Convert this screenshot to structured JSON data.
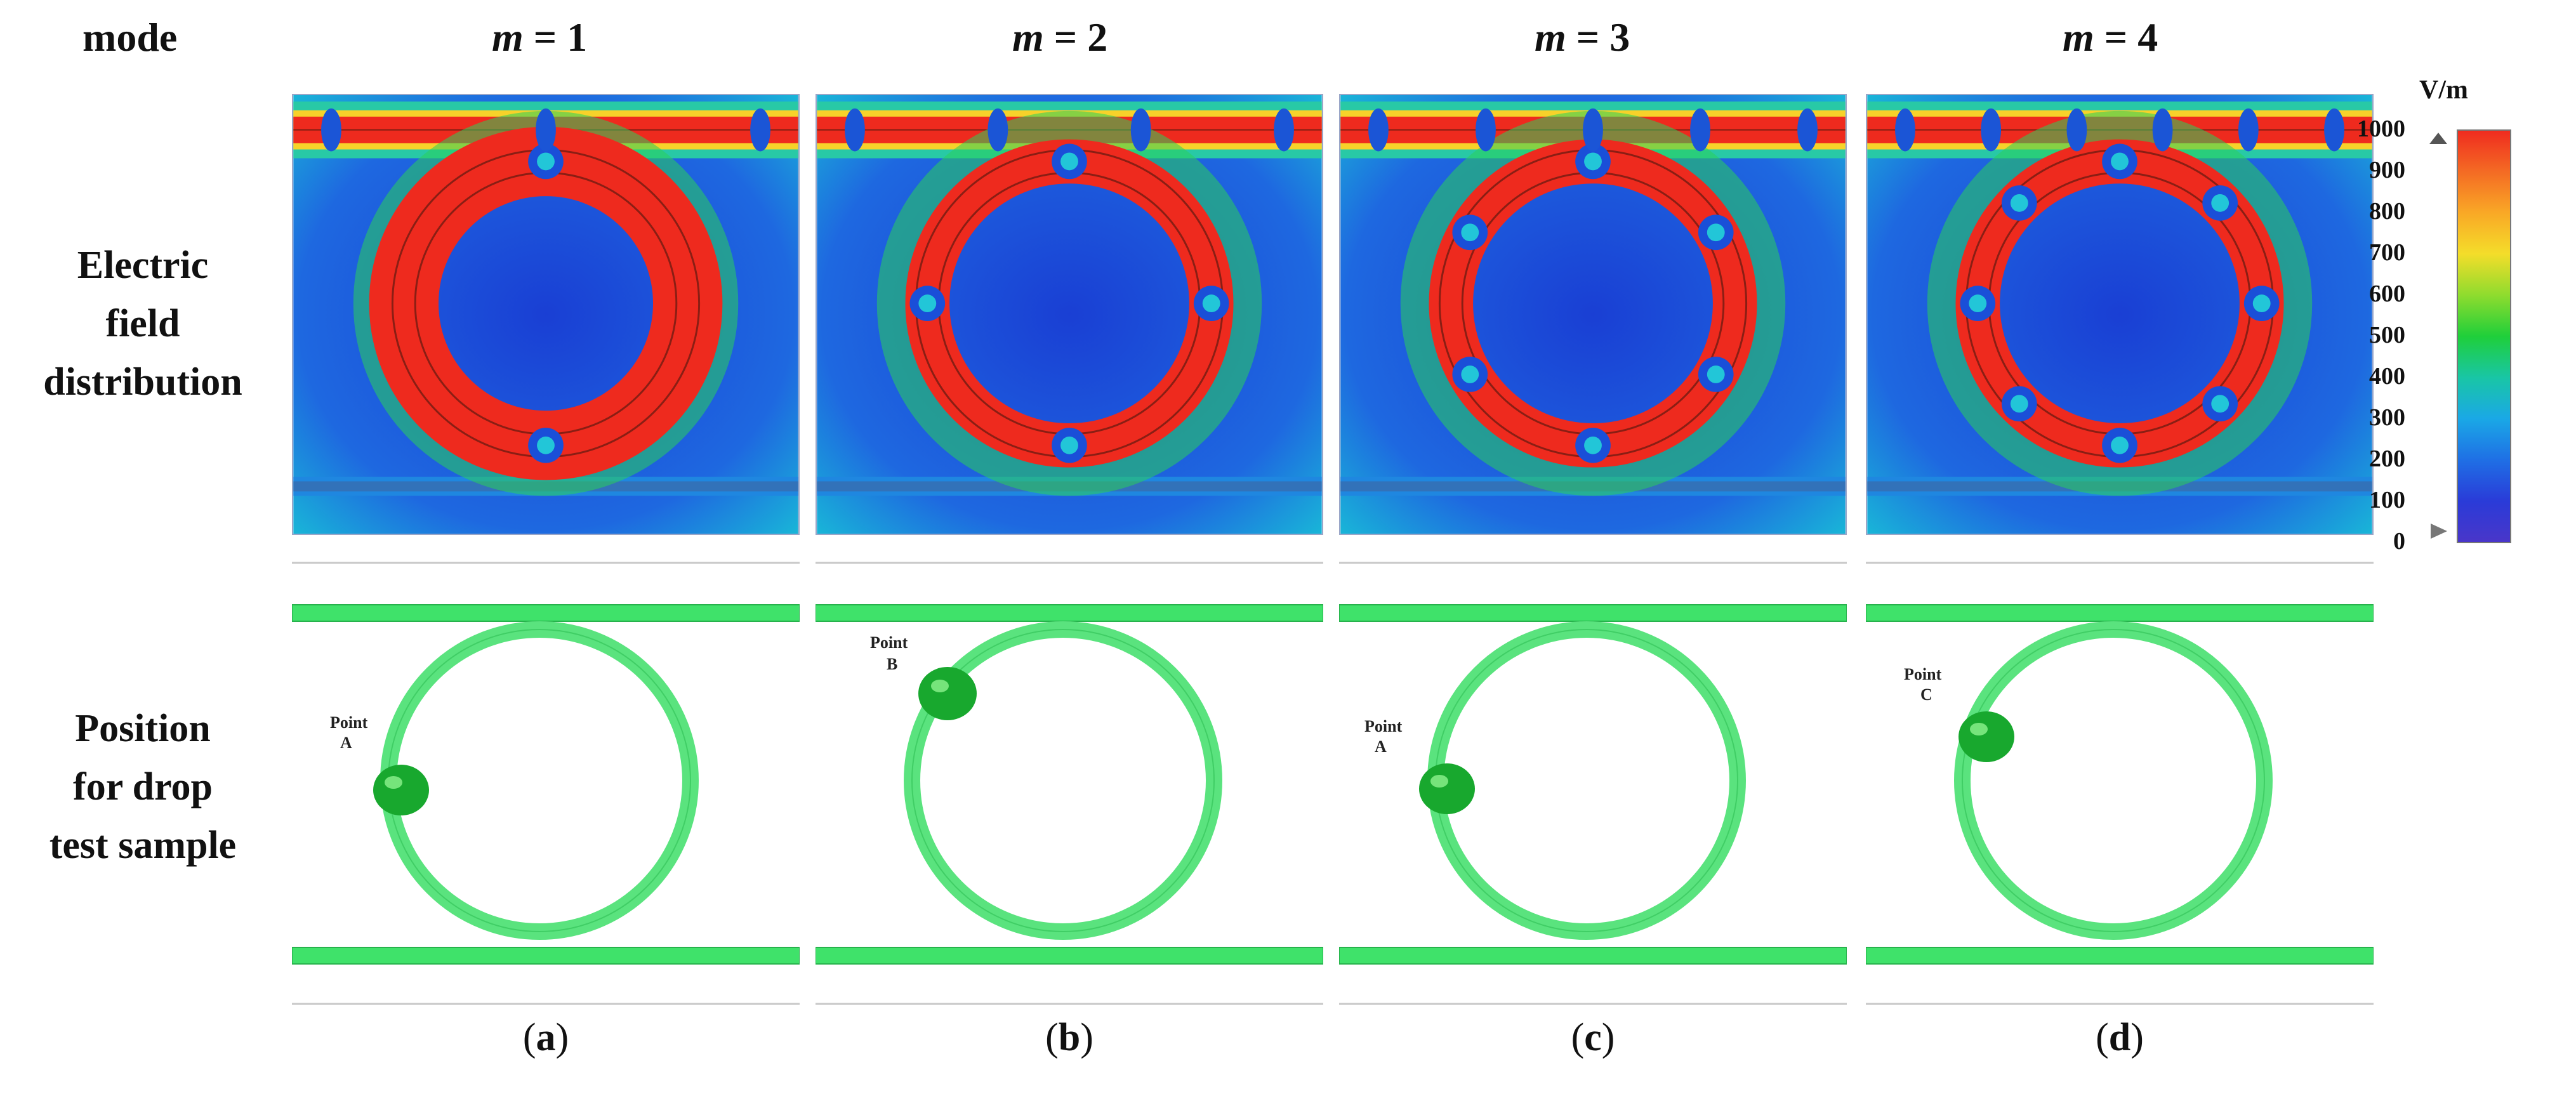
{
  "headers": {
    "mode": "mode",
    "modes": [
      {
        "var": "m",
        "rest": " = 1"
      },
      {
        "var": "m",
        "rest": " = 2"
      },
      {
        "var": "m",
        "rest": " = 3"
      },
      {
        "var": "m",
        "rest": " = 4"
      }
    ]
  },
  "row_labels": {
    "field": [
      "Electric",
      "field",
      "distribution"
    ],
    "drop": [
      "Position",
      "for drop",
      "test sample"
    ]
  },
  "colorbar": {
    "unit": "V/m",
    "ticks": [
      "1000",
      "900",
      "800",
      "700",
      "600",
      "500",
      "400",
      "300",
      "200",
      "100",
      "0"
    ],
    "colors": [
      "#ef2b1f",
      "#f46a24",
      "#f9a826",
      "#f4dd2a",
      "#8fdc2e",
      "#1fcf3a",
      "#19c6a5",
      "#1aa8e6",
      "#1f6fe5",
      "#2a3bd8",
      "#4a36c9"
    ]
  },
  "panels": [
    {
      "caption": "a",
      "lobes": 2,
      "drop_point": "Point A"
    },
    {
      "caption": "b",
      "lobes": 4,
      "drop_point": "Point B"
    },
    {
      "caption": "c",
      "lobes": 6,
      "drop_point": "Point A"
    },
    {
      "caption": "d",
      "lobes": 8,
      "drop_point": "Point C"
    }
  ],
  "point_labels": {
    "a_top": "Point",
    "a_bottom": "A",
    "b_top": "Point",
    "b_bottom": "B",
    "c_top": "Point",
    "c_bottom": "A",
    "d_top": "Point",
    "d_bottom": "C"
  }
}
